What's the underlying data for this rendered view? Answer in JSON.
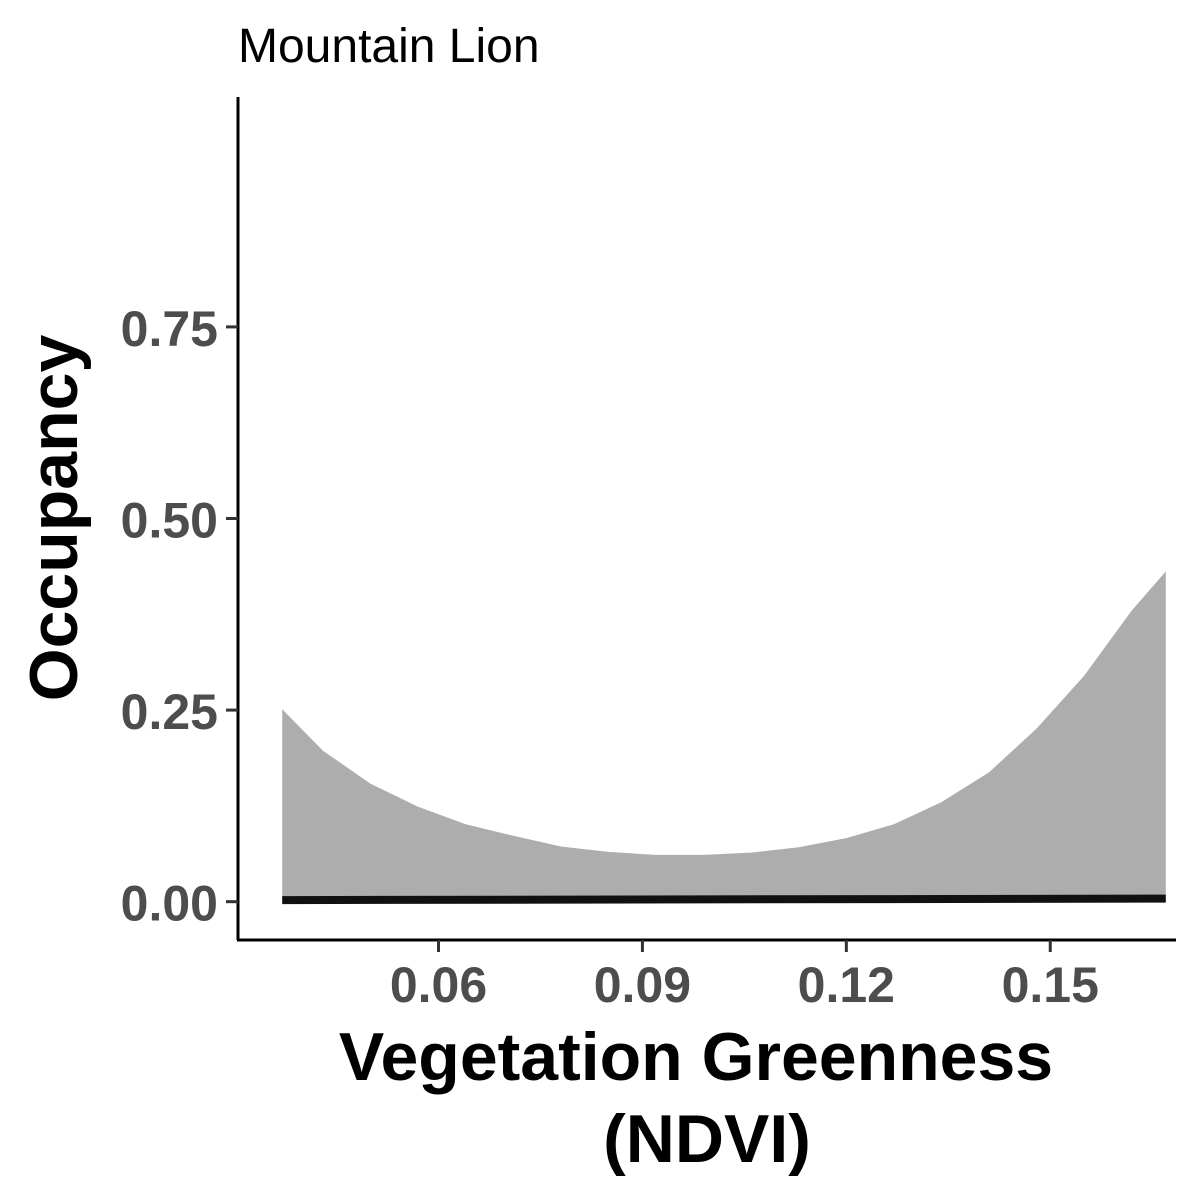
{
  "chart_data": {
    "type": "area",
    "title": "Mountain Lion",
    "xlabel_lines": [
      "Vegetation Greenness",
      "(NDVI)"
    ],
    "ylabel": "Occupancy",
    "xlim": [
      0.0305,
      0.1685
    ],
    "ylim": [
      -0.05,
      1.05
    ],
    "x_ticks": [
      0.06,
      0.09,
      0.12,
      0.15
    ],
    "x_tick_labels": [
      "0.06",
      "0.09",
      "0.12",
      "0.15"
    ],
    "y_ticks": [
      0.0,
      0.25,
      0.5,
      0.75
    ],
    "y_tick_labels": [
      "0.00",
      "0.25",
      "0.50",
      "0.75"
    ],
    "grid": false,
    "legend": "none",
    "series": [
      {
        "kind": "ribbon",
        "fill": "#adadad",
        "x": [
          0.037,
          0.043,
          0.05,
          0.057,
          0.064,
          0.071,
          0.078,
          0.085,
          0.092,
          0.099,
          0.106,
          0.113,
          0.12,
          0.127,
          0.134,
          0.141,
          0.148,
          0.155,
          0.162,
          0.167
        ],
        "upper": [
          0.251,
          0.197,
          0.154,
          0.124,
          0.101,
          0.086,
          0.072,
          0.065,
          0.061,
          0.061,
          0.064,
          0.071,
          0.083,
          0.101,
          0.13,
          0.169,
          0.226,
          0.295,
          0.38,
          0.431
        ],
        "lower": [
          0.001,
          0.001,
          0.001,
          0.001,
          0.001,
          0.001,
          0.001,
          0.001,
          0.001,
          0.001,
          0.001,
          0.001,
          0.001,
          0.001,
          0.001,
          0.001,
          0.001,
          0.001,
          0.001,
          0.001
        ]
      },
      {
        "kind": "line",
        "color": "#111111",
        "x": [
          0.037,
          0.167
        ],
        "y": [
          0.002,
          0.004
        ]
      }
    ]
  }
}
